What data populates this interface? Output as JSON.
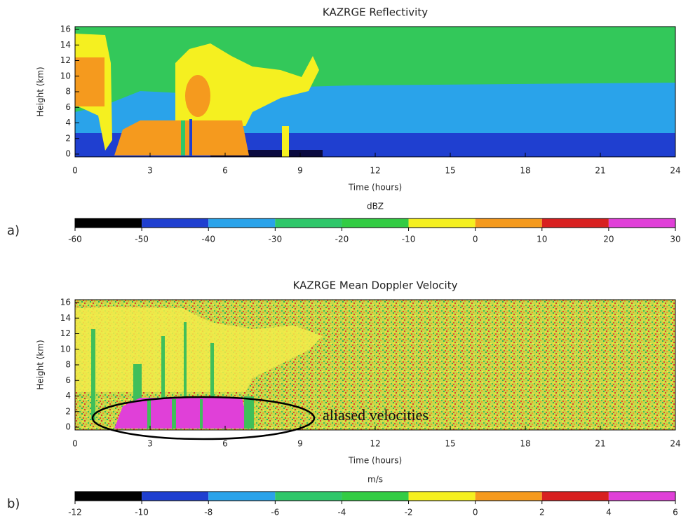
{
  "chart_data": [
    {
      "type": "heatmap",
      "panel_label": "a)",
      "title": "KAZRGE Reflectivity",
      "xlabel": "Time (hours)",
      "ylabel": "Height (km)",
      "xlim": [
        0,
        24
      ],
      "xticks": [
        0,
        3,
        6,
        9,
        12,
        15,
        18,
        21,
        24
      ],
      "ylim": [
        0,
        16
      ],
      "yticks": [
        0,
        2,
        4,
        6,
        8,
        10,
        12,
        14,
        16
      ],
      "colorbar_label": "dBZ",
      "colorbar_ticks": [
        -60,
        -50,
        -40,
        -30,
        -20,
        -10,
        0,
        10,
        20,
        30
      ],
      "colorbar_colors": [
        "#000000",
        "#1f3fd0",
        "#2aa3ea",
        "#2fc76a",
        "#33cc44",
        "#f5f020",
        "#f59a1e",
        "#d82020",
        "#e040d8"
      ]
    },
    {
      "type": "heatmap",
      "panel_label": "b)",
      "title": "KAZRGE Mean Doppler Velocity",
      "xlabel": "Time (hours)",
      "ylabel": "Height (km)",
      "xlim": [
        0,
        24
      ],
      "xticks": [
        0,
        3,
        6,
        9,
        12,
        15,
        18,
        21,
        24
      ],
      "ylim": [
        0,
        16
      ],
      "yticks": [
        0,
        2,
        4,
        6,
        8,
        10,
        12,
        14,
        16
      ],
      "colorbar_label": "m/s",
      "colorbar_ticks": [
        -12,
        -10,
        -8,
        -6,
        -4,
        -2,
        0,
        2,
        4,
        6
      ],
      "colorbar_colors": [
        "#000000",
        "#1f3fd0",
        "#2aa3ea",
        "#2fc76a",
        "#33cc44",
        "#f5f020",
        "#f59a1e",
        "#d82020",
        "#e040d8"
      ],
      "annotation": "aliased velocities"
    }
  ]
}
